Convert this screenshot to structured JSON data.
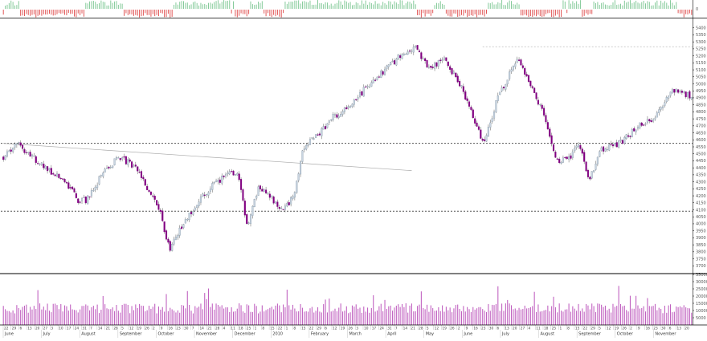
{
  "chart_data": {
    "type": "candlestick",
    "panels": [
      "breadth",
      "price",
      "volume"
    ],
    "colors": {
      "background": "#ffffff",
      "frame": "#000000",
      "up_candle_body": "#c8d4e0",
      "down_candle_body": "#800080",
      "wick": "#333333",
      "breadth_up": "#7fc895",
      "breadth_down": "#e05050",
      "volume_bar": "#c060c0",
      "reference_line": "#555555"
    },
    "price_axis": {
      "ylim": [
        3650,
        5450
      ],
      "ticks": [
        "5400",
        "5350",
        "5300",
        "5250",
        "5200",
        "5150",
        "5100",
        "5050",
        "5000",
        "4950",
        "4900",
        "4850",
        "4800",
        "4750",
        "4700",
        "4650",
        "4600",
        "4550",
        "4500",
        "4450",
        "4400",
        "4350",
        "4300",
        "4250",
        "4200",
        "4150",
        "4100",
        "4050",
        "4000",
        "3950",
        "3900",
        "3850",
        "3800",
        "3750",
        "3700"
      ]
    },
    "volume_axis": {
      "ylim": [
        0,
        35000
      ],
      "ticks": [
        "35000",
        "30000",
        "25000",
        "20000",
        "15000",
        "10000",
        "5000"
      ]
    },
    "breadth_axis": {
      "ticks": [
        "0"
      ]
    },
    "x_months": [
      "June",
      "July",
      "August",
      "September",
      "October",
      "November",
      "December",
      "2010",
      "February",
      "March",
      "April",
      "May",
      "June",
      "July",
      "August",
      "September",
      "October",
      "November"
    ],
    "x_days": [
      "22",
      "29",
      "6",
      "13",
      "20",
      "27",
      "3",
      "10",
      "17",
      "24",
      "31",
      "7",
      "14",
      "21",
      "28",
      "5",
      "12",
      "19",
      "26",
      "2",
      "9",
      "16",
      "23",
      "30",
      "7",
      "14",
      "21",
      "28",
      "4",
      "11",
      "18",
      "25",
      "1",
      "8",
      "15",
      "22",
      "1",
      "8",
      "15",
      "22",
      "29",
      "6",
      "12",
      "19",
      "26",
      "3",
      "10",
      "17",
      "24",
      "31",
      "7",
      "14",
      "21",
      "28",
      "5",
      "12",
      "19",
      "26",
      "2",
      "9",
      "16",
      "23",
      "30",
      "6",
      "13",
      "20",
      "27",
      "4",
      "11",
      "18",
      "25",
      "1",
      "8",
      "15",
      "22",
      "29",
      "5",
      "12",
      "19",
      "26",
      "2",
      "9",
      "16",
      "23",
      "30",
      "6",
      "13",
      "20"
    ],
    "horizontal_levels": [
      4575,
      4090,
      5265
    ],
    "trendline": {
      "from": [
        0,
        4575
      ],
      "to": [
        213,
        4380
      ]
    },
    "summary": {
      "start_price": 4480,
      "low": 3790,
      "high": 5275,
      "end_price": 4930,
      "bars": 360
    }
  }
}
